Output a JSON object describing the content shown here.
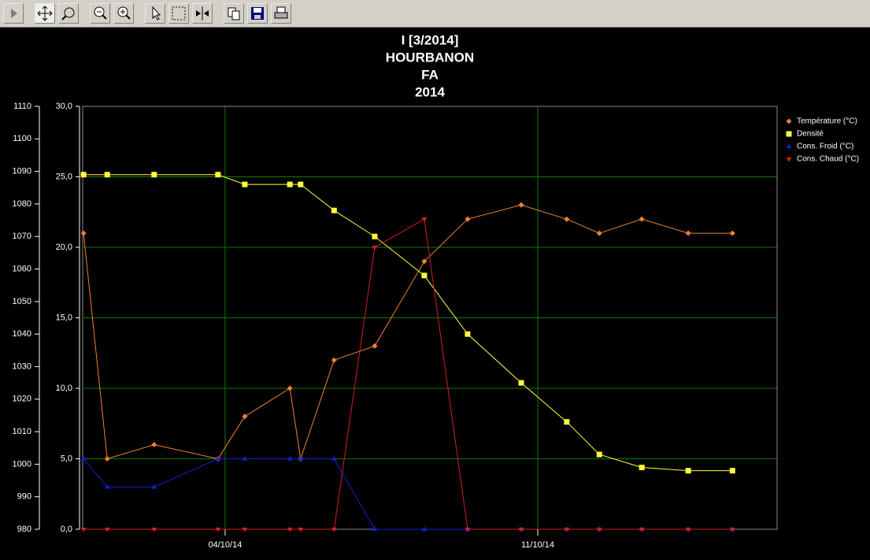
{
  "chart_data": {
    "type": "line",
    "title": [
      "I [3/2014]",
      "HOURBANON",
      "FA",
      "2014"
    ],
    "x": [
      0.83,
      1.36,
      2.41,
      3.84,
      4.44,
      5.45,
      5.69,
      6.44,
      7.35,
      8.46,
      9.43,
      10.63,
      11.65,
      12.38,
      13.33,
      14.37,
      15.36
    ],
    "xlim": [
      0.81,
      16.36
    ],
    "xticks": [
      {
        "value": 4,
        "label": "04/10/14"
      },
      {
        "value": 11,
        "label": "11/10/14"
      }
    ],
    "ylim": [
      0,
      30
    ],
    "yticks": [
      {
        "value": 0,
        "label": "0,0"
      },
      {
        "value": 5,
        "label": "5,0"
      },
      {
        "value": 10,
        "label": "10,0"
      },
      {
        "value": 15,
        "label": "15,0"
      },
      {
        "value": 20,
        "label": "20,0"
      },
      {
        "value": 25,
        "label": "25,0"
      },
      {
        "value": 30,
        "label": "30,0"
      }
    ],
    "y2lim": [
      980,
      1110
    ],
    "y2ticks": [
      980,
      990,
      1000,
      1010,
      1020,
      1030,
      1040,
      1050,
      1060,
      1070,
      1080,
      1090,
      1100,
      1110
    ],
    "grid": true,
    "legend": "top-right",
    "series": [
      {
        "name": "Température (°C)",
        "color": "#f08030",
        "marker": "diamond",
        "values": [
          21,
          5,
          6,
          5,
          8,
          10,
          5,
          12,
          13,
          19,
          22,
          23,
          22,
          21,
          22,
          21,
          21
        ]
      },
      {
        "name": "Densité",
        "color": "#ffff40",
        "marker": "square",
        "axis": "y2",
        "values": [
          1089,
          1089,
          1089,
          1089,
          1086,
          1086,
          1086,
          1078,
          1070,
          1058,
          1040,
          1025,
          1013,
          1003,
          999,
          998,
          998
        ]
      },
      {
        "name": "Cons. Froid (°C)",
        "color": "#1020d0",
        "marker": "triangle-up",
        "values": [
          5,
          3,
          3,
          5,
          5,
          5,
          5,
          5,
          0,
          0,
          0,
          0,
          0,
          0,
          0,
          0,
          0
        ]
      },
      {
        "name": "Cons. Chaud (°C)",
        "color": "#d02020",
        "marker": "triangle-down",
        "values": [
          0,
          0,
          0,
          0,
          0,
          0,
          0,
          0,
          20,
          22,
          0,
          0,
          0,
          0,
          0,
          0,
          0
        ]
      }
    ]
  }
}
